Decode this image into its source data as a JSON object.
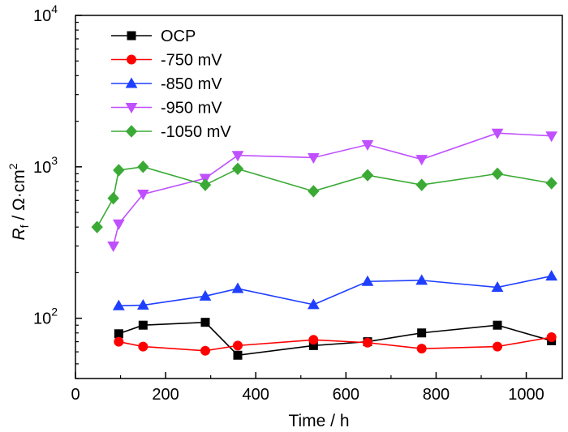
{
  "chart_data": {
    "type": "line",
    "xlabel": "Time / h",
    "ylabel": {
      "var": "R",
      "sub": "f",
      "unit": " / Ω·cm",
      "sup": "2"
    },
    "xlim": [
      0,
      1080
    ],
    "ylim": [
      40,
      10000
    ],
    "yscale": "log",
    "grid": false,
    "legend_position": "top-left",
    "x_ticks": [
      0,
      200,
      400,
      600,
      800,
      1000
    ],
    "x_tick_labels": [
      "0",
      "200",
      "400",
      "600",
      "800",
      "1000"
    ],
    "y_ticks": [
      100,
      1000,
      10000
    ],
    "y_tick_labels": [
      {
        "base": "10",
        "exp": "2"
      },
      {
        "base": "10",
        "exp": "3"
      },
      {
        "base": "10",
        "exp": "4"
      }
    ],
    "series": [
      {
        "name": "OCP",
        "color": "#000000",
        "marker": "square",
        "x": [
          96,
          150,
          288,
          360,
          528,
          648,
          768,
          936,
          1056
        ],
        "y": [
          79,
          90,
          94,
          57,
          66,
          70,
          80,
          90,
          71
        ]
      },
      {
        "name": "-750 mV",
        "color": "#ff0000",
        "marker": "circle",
        "x": [
          96,
          150,
          288,
          360,
          528,
          648,
          768,
          936,
          1056
        ],
        "y": [
          70,
          65,
          61,
          66,
          72,
          69,
          63,
          65,
          75
        ]
      },
      {
        "name": "-850 mV",
        "color": "#1f3fff",
        "marker": "triangle-up",
        "x": [
          96,
          150,
          288,
          360,
          528,
          648,
          768,
          936,
          1056
        ],
        "y": [
          121,
          122,
          140,
          157,
          123,
          175,
          178,
          160,
          190
        ]
      },
      {
        "name": "-950 mV",
        "color": "#c050ff",
        "marker": "triangle-down",
        "x": [
          84,
          96,
          150,
          288,
          360,
          528,
          648,
          768,
          936,
          1056
        ],
        "y": [
          300,
          420,
          660,
          840,
          1190,
          1150,
          1400,
          1120,
          1670,
          1600
        ]
      },
      {
        "name": "-1050 mV",
        "color": "#3aaa35",
        "marker": "diamond",
        "x": [
          48,
          84,
          96,
          150,
          288,
          360,
          528,
          648,
          768,
          936,
          1056
        ],
        "y": [
          400,
          620,
          950,
          1000,
          760,
          970,
          690,
          880,
          760,
          900,
          780
        ]
      }
    ]
  }
}
